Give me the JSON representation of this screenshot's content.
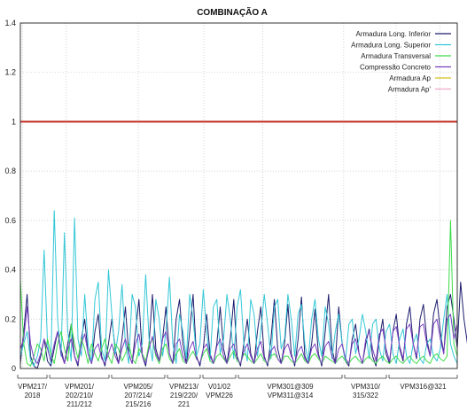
{
  "chart_data": {
    "type": "line",
    "title": "COMBINAÇÃO A",
    "xlabel": "",
    "ylabel": "",
    "ylim": [
      0,
      1.4
    ],
    "yticks": [
      "0",
      "0.2",
      "0.4",
      "0.6",
      "0.8",
      "1",
      "1.2",
      "1.4"
    ],
    "grid": "dotted",
    "legend_position": "top-right",
    "limit_line": {
      "value": 1.0,
      "color": "#c0281e"
    },
    "x_count": 130,
    "series": [
      {
        "name": "Armadura Long. Inferior",
        "color": "#1c1c6e",
        "values": [
          0.02,
          0.15,
          0.3,
          0.05,
          0.01,
          0.0,
          0.05,
          0.12,
          0.03,
          0.01,
          0.08,
          0.15,
          0.08,
          0.02,
          0.1,
          0.18,
          0.05,
          0.01,
          0.12,
          0.2,
          0.06,
          0.02,
          0.15,
          0.22,
          0.05,
          0.01,
          0.1,
          0.2,
          0.08,
          0.02,
          0.12,
          0.25,
          0.06,
          0.02,
          0.15,
          0.28,
          0.05,
          0.01,
          0.1,
          0.3,
          0.08,
          0.03,
          0.12,
          0.25,
          0.06,
          0.02,
          0.2,
          0.28,
          0.1,
          0.02,
          0.15,
          0.3,
          0.05,
          0.01,
          0.08,
          0.22,
          0.06,
          0.02,
          0.1,
          0.25,
          0.08,
          0.02,
          0.12,
          0.28,
          0.05,
          0.01,
          0.1,
          0.2,
          0.06,
          0.02,
          0.15,
          0.25,
          0.05,
          0.01,
          0.12,
          0.28,
          0.08,
          0.02,
          0.1,
          0.26,
          0.06,
          0.01,
          0.12,
          0.29,
          0.05,
          0.02,
          0.1,
          0.24,
          0.06,
          0.01,
          0.15,
          0.3,
          0.08,
          0.02,
          0.25,
          0.1,
          0.03,
          0.01,
          0.12,
          0.18,
          0.06,
          0.02,
          0.1,
          0.16,
          0.05,
          0.01,
          0.12,
          0.2,
          0.06,
          0.02,
          0.15,
          0.22,
          0.08,
          0.03,
          0.18,
          0.25,
          0.1,
          0.04,
          0.2,
          0.26,
          0.12,
          0.05,
          0.22,
          0.28,
          0.15,
          0.06,
          0.25,
          0.3,
          0.2,
          0.08,
          0.35,
          0.2,
          0.1,
          0.22
        ]
      },
      {
        "name": "Armadura Long. Superior",
        "color": "#33c7d6",
        "values": [
          0.05,
          0.1,
          0.15,
          0.03,
          0.01,
          0.05,
          0.12,
          0.48,
          0.1,
          0.02,
          0.64,
          0.2,
          0.05,
          0.55,
          0.15,
          0.03,
          0.61,
          0.12,
          0.05,
          0.3,
          0.1,
          0.02,
          0.28,
          0.35,
          0.08,
          0.03,
          0.4,
          0.22,
          0.06,
          0.15,
          0.34,
          0.1,
          0.02,
          0.3,
          0.25,
          0.05,
          0.1,
          0.38,
          0.12,
          0.03,
          0.28,
          0.2,
          0.05,
          0.15,
          0.37,
          0.1,
          0.02,
          0.22,
          0.15,
          0.04,
          0.3,
          0.2,
          0.05,
          0.1,
          0.32,
          0.15,
          0.03,
          0.25,
          0.28,
          0.06,
          0.12,
          0.3,
          0.2,
          0.04,
          0.25,
          0.32,
          0.1,
          0.03,
          0.28,
          0.22,
          0.05,
          0.15,
          0.3,
          0.18,
          0.04,
          0.25,
          0.28,
          0.08,
          0.12,
          0.3,
          0.2,
          0.05,
          0.22,
          0.26,
          0.1,
          0.03,
          0.2,
          0.28,
          0.12,
          0.05,
          0.25,
          0.18,
          0.04,
          0.15,
          0.22,
          0.1,
          0.03,
          0.18,
          0.2,
          0.06,
          0.12,
          0.22,
          0.15,
          0.04,
          0.18,
          0.2,
          0.08,
          0.03,
          0.15,
          0.18,
          0.06,
          0.02,
          0.12,
          0.16,
          0.05,
          0.02,
          0.1,
          0.14,
          0.04,
          0.02,
          0.1,
          0.12,
          0.05,
          0.03,
          0.08,
          0.2,
          0.3,
          0.1,
          0.05,
          0.02
        ]
      },
      {
        "name": "Armadura Transversal",
        "color": "#3ddc4a",
        "values": [
          0.36,
          0.1,
          0.02,
          0.01,
          0.05,
          0.1,
          0.08,
          0.03,
          0.12,
          0.06,
          0.02,
          0.1,
          0.15,
          0.08,
          0.03,
          0.18,
          0.1,
          0.04,
          0.12,
          0.08,
          0.02,
          0.1,
          0.06,
          0.03,
          0.08,
          0.12,
          0.05,
          0.02,
          0.1,
          0.08,
          0.03,
          0.06,
          0.1,
          0.04,
          0.02,
          0.08,
          0.06,
          0.03,
          0.1,
          0.12,
          0.05,
          0.02,
          0.08,
          0.1,
          0.04,
          0.02,
          0.06,
          0.08,
          0.03,
          0.02,
          0.05,
          0.07,
          0.04,
          0.02,
          0.06,
          0.08,
          0.03,
          0.02,
          0.05,
          0.06,
          0.04,
          0.02,
          0.05,
          0.07,
          0.03,
          0.02,
          0.06,
          0.05,
          0.03,
          0.02,
          0.04,
          0.06,
          0.03,
          0.02,
          0.05,
          0.06,
          0.04,
          0.02,
          0.05,
          0.05,
          0.03,
          0.02,
          0.04,
          0.06,
          0.03,
          0.02,
          0.05,
          0.06,
          0.04,
          0.02,
          0.05,
          0.04,
          0.03,
          0.02,
          0.04,
          0.05,
          0.03,
          0.02,
          0.04,
          0.05,
          0.03,
          0.02,
          0.04,
          0.05,
          0.03,
          0.02,
          0.04,
          0.05,
          0.03,
          0.02,
          0.04,
          0.05,
          0.03,
          0.02,
          0.04,
          0.05,
          0.03,
          0.02,
          0.04,
          0.05,
          0.03,
          0.02,
          0.05,
          0.06,
          0.04,
          0.03,
          0.05,
          0.6,
          0.1,
          0.05
        ]
      },
      {
        "name": "Compressão Concreto",
        "color": "#7a3fc2",
        "values": [
          0.08,
          0.12,
          0.25,
          0.1,
          0.04,
          0.02,
          0.06,
          0.12,
          0.08,
          0.03,
          0.1,
          0.15,
          0.06,
          0.02,
          0.08,
          0.12,
          0.05,
          0.02,
          0.1,
          0.14,
          0.06,
          0.02,
          0.08,
          0.1,
          0.04,
          0.02,
          0.06,
          0.1,
          0.05,
          0.02,
          0.08,
          0.12,
          0.06,
          0.02,
          0.1,
          0.14,
          0.05,
          0.02,
          0.08,
          0.13,
          0.06,
          0.03,
          0.12,
          0.15,
          0.06,
          0.02,
          0.1,
          0.12,
          0.05,
          0.02,
          0.08,
          0.11,
          0.04,
          0.02,
          0.08,
          0.1,
          0.05,
          0.02,
          0.09,
          0.12,
          0.05,
          0.02,
          0.08,
          0.1,
          0.04,
          0.02,
          0.07,
          0.1,
          0.05,
          0.02,
          0.08,
          0.11,
          0.04,
          0.02,
          0.07,
          0.09,
          0.04,
          0.02,
          0.08,
          0.1,
          0.05,
          0.02,
          0.07,
          0.09,
          0.04,
          0.02,
          0.08,
          0.1,
          0.05,
          0.02,
          0.09,
          0.11,
          0.05,
          0.02,
          0.08,
          0.1,
          0.04,
          0.02,
          0.1,
          0.12,
          0.06,
          0.02,
          0.12,
          0.15,
          0.08,
          0.03,
          0.14,
          0.16,
          0.08,
          0.03,
          0.15,
          0.17,
          0.09,
          0.04,
          0.16,
          0.18,
          0.1,
          0.05,
          0.17,
          0.18,
          0.1,
          0.05,
          0.18,
          0.2,
          0.12,
          0.06,
          0.2,
          0.22,
          0.12,
          0.18
        ]
      },
      {
        "name": "Armadura Ap",
        "color": "#d4c21a",
        "values": []
      },
      {
        "name": "Armadura Ap'",
        "color": "#f0a8c8",
        "values": []
      }
    ],
    "groups": [
      {
        "lines": [
          "VPM217/",
          "2018"
        ]
      },
      {
        "lines": [
          "VPM201/",
          "202/210/",
          "211/212"
        ]
      },
      {
        "lines": [
          "VPM205/",
          "207/214/",
          "215/216"
        ]
      },
      {
        "lines": [
          "VPM213/",
          "219/220/",
          "221"
        ]
      },
      {
        "lines": [
          "V01/02",
          "VPM226"
        ]
      },
      {
        "lines": [
          "VPM301@309",
          "VPM311@314"
        ]
      },
      {
        "lines": [
          "VPM310/",
          "315/322"
        ]
      },
      {
        "lines": [
          "VPM316@321"
        ]
      }
    ]
  }
}
